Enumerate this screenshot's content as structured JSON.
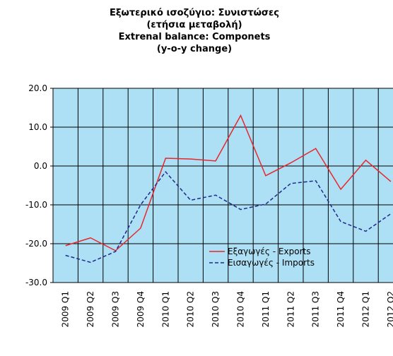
{
  "chart_data": {
    "type": "line",
    "title": [
      "Εξωτερικό ισοζύγιο: Συνιστώσες",
      "(ετήσια μεταβολή)",
      "Extrenal balance: Componets",
      "(y-o-y change)"
    ],
    "categories": [
      "2009 Q1",
      "2009 Q2",
      "2009 Q3",
      "2009 Q4",
      "2010 Q1",
      "2010 Q2",
      "2010 Q3",
      "2010 Q4",
      "2011 Q1",
      "2011 Q2",
      "2011 Q3",
      "2011 Q4",
      "2012 Q1",
      "2012 Q2"
    ],
    "series": [
      {
        "name": "Εξαγωγές - Exports",
        "color": "#e8262b",
        "dash": false,
        "values": [
          -20.5,
          -18.5,
          -21.8,
          -16,
          2,
          1.8,
          1.3,
          13,
          -2.5,
          0.8,
          4.5,
          -6,
          1.5,
          -4
        ]
      },
      {
        "name": "Εισαγωγές - Imports",
        "color": "#1f2a8c",
        "dash": true,
        "values": [
          -23,
          -24.8,
          -22,
          -10,
          -1.5,
          -8.8,
          -7.5,
          -11.2,
          -9.8,
          -4.5,
          -3.8,
          -14.3,
          -16.8,
          -12.3
        ]
      }
    ],
    "ylim": [
      -30,
      20
    ],
    "yticks": [
      {
        "value": -30,
        "label": "-30.0"
      },
      {
        "value": -20,
        "label": "-20.0"
      },
      {
        "value": -10,
        "label": "-10.0"
      },
      {
        "value": 0,
        "label": "0.0"
      },
      {
        "value": 10,
        "label": "10.0"
      },
      {
        "value": 20,
        "label": "20.0"
      }
    ],
    "grid": true,
    "plot_background": "#aee0f5"
  }
}
